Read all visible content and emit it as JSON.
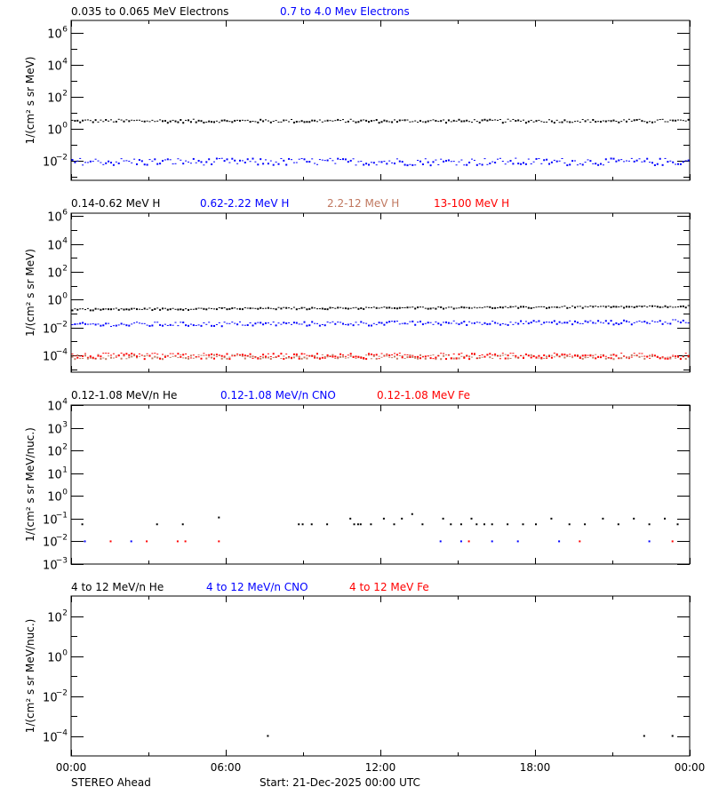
{
  "figure": {
    "footer_left": "STEREO Ahead",
    "footer_center": "Start: 21-Dec-2025 00:00 UTC",
    "x_tick_labels": [
      "00:00",
      "06:00",
      "12:00",
      "18:00",
      "00:00"
    ]
  },
  "chart_data": [
    {
      "type": "scatter",
      "title": "Electrons",
      "ylabel": "1/(cm² s sr MeV)",
      "yscale": "log",
      "ylim_exp": [
        -3.2,
        6.8
      ],
      "ytick_exps": [
        6,
        4,
        2,
        0,
        -2
      ],
      "ytick_labels": [
        "10^6",
        "10^4",
        "10^2",
        "10^0",
        "10^-2"
      ],
      "x_range_hours": [
        0,
        24
      ],
      "xticks": [
        "00:00",
        "06:00",
        "12:00",
        "18:00",
        "00:00"
      ],
      "legend": [
        {
          "label": "0.035 to 0.065 MeV Electrons",
          "color": "#000000"
        },
        {
          "label": "0.7 to 4.0 Mev Electrons",
          "color": "#0000ff"
        }
      ],
      "series": [
        {
          "name": "0.035 to 0.065 MeV Electrons",
          "color": "#000000",
          "level_exp": 0.55,
          "end_level_exp": 0.55,
          "jitter": 0.1
        },
        {
          "name": "0.7 to 4.0 Mev Electrons",
          "color": "#0000ff",
          "level_exp": -2.0,
          "end_level_exp": -2.0,
          "jitter": 0.22
        }
      ]
    },
    {
      "type": "scatter",
      "title": "Protons (H)",
      "ylabel": "1/(cm² s sr MeV)",
      "yscale": "log",
      "ylim_exp": [
        -5.2,
        6.2
      ],
      "ytick_exps": [
        6,
        4,
        2,
        0,
        -2,
        -4
      ],
      "ytick_labels": [
        "10^6",
        "10^4",
        "10^2",
        "10^0",
        "10^-2",
        "10^-4"
      ],
      "x_range_hours": [
        0,
        24
      ],
      "xticks": [
        "00:00",
        "06:00",
        "12:00",
        "18:00",
        "00:00"
      ],
      "legend": [
        {
          "label": "0.14-0.62 MeV H",
          "color": "#000000"
        },
        {
          "label": "0.62-2.22 MeV H",
          "color": "#0000ff"
        },
        {
          "label": "2.2-12 MeV H",
          "color": "#c07860"
        },
        {
          "label": "13-100 MeV H",
          "color": "#ff0000"
        }
      ],
      "series": [
        {
          "name": "0.14-0.62 MeV H",
          "color": "#000000",
          "level_exp": -0.65,
          "end_level_exp": -0.45,
          "jitter": 0.06
        },
        {
          "name": "0.62-2.22 MeV H",
          "color": "#0000ff",
          "level_exp": -1.75,
          "end_level_exp": -1.55,
          "jitter": 0.15
        },
        {
          "name": "2.2-12 MeV H",
          "color": "#c07860",
          "level_exp": -4.05,
          "end_level_exp": -4.05,
          "jitter": 0.15
        },
        {
          "name": "13-100 MeV H",
          "color": "#ff0000",
          "level_exp": -4.0,
          "end_level_exp": -4.0,
          "jitter": 0.2
        }
      ]
    },
    {
      "type": "scatter",
      "title": "Low-energy heavy ions",
      "ylabel": "1/(cm² s sr MeV/nuc.)",
      "yscale": "log",
      "ylim_exp": [
        -3,
        4
      ],
      "ytick_exps": [
        4,
        3,
        2,
        1,
        0,
        -1,
        -2,
        -3
      ],
      "ytick_labels": [
        "10^4",
        "10^3",
        "10^2",
        "10^1",
        "10^0",
        "10^-1",
        "10^-2",
        "10^-3"
      ],
      "x_range_hours": [
        0,
        24
      ],
      "xticks": [
        "00:00",
        "06:00",
        "12:00",
        "18:00",
        "00:00"
      ],
      "legend": [
        {
          "label": "0.12-1.08 MeV/n He",
          "color": "#000000"
        },
        {
          "label": "0.12-1.08 MeV/n CNO",
          "color": "#0000ff"
        },
        {
          "label": "0.12-1.08 MeV Fe",
          "color": "#ff0000"
        }
      ],
      "points": {
        "He_hours": [
          0.4,
          3.3,
          4.3,
          5.7,
          8.8,
          8.95,
          9.3,
          9.9,
          10.8,
          10.95,
          11.1,
          11.2,
          11.6,
          12.1,
          12.5,
          12.8,
          13.2,
          13.6,
          14.4,
          14.7,
          15.1,
          15.5,
          15.7,
          16.0,
          16.3,
          16.9,
          17.5,
          18.0,
          18.6,
          19.3,
          19.9,
          20.6,
          21.2,
          21.8,
          22.4,
          23.0,
          23.5
        ],
        "He_exps": [
          -1.25,
          -1.25,
          -1.25,
          -0.95,
          -1.25,
          -1.25,
          -1.25,
          -1.25,
          -1.0,
          -1.25,
          -1.25,
          -1.25,
          -1.25,
          -1.0,
          -1.25,
          -1.0,
          -0.8,
          -1.25,
          -1.0,
          -1.25,
          -1.25,
          -1.0,
          -1.25,
          -1.25,
          -1.25,
          -1.25,
          -1.25,
          -1.25,
          -1.0,
          -1.25,
          -1.25,
          -1.0,
          -1.25,
          -1.0,
          -1.25,
          -1.0,
          -1.25
        ],
        "CNO_hours": [
          0.5,
          2.3,
          14.3,
          15.1,
          16.3,
          17.3,
          18.9,
          22.4
        ],
        "CNO_exps": [
          -2,
          -2,
          -2,
          -2,
          -2,
          -2,
          -2,
          -2
        ],
        "Fe_hours": [
          1.5,
          2.9,
          4.1,
          4.4,
          5.7,
          15.4,
          19.7,
          23.3
        ],
        "Fe_exps": [
          -2,
          -2,
          -2,
          -2,
          -2,
          -2,
          -2,
          -2
        ]
      }
    },
    {
      "type": "scatter",
      "title": "High-energy heavy ions",
      "ylabel": "1/(cm² s sr MeV/nuc.)",
      "yscale": "log",
      "ylim_exp": [
        -5,
        3
      ],
      "ytick_exps": [
        2,
        0,
        -2,
        -4
      ],
      "ytick_labels": [
        "10^2",
        "10^0",
        "10^-2",
        "10^-4"
      ],
      "x_range_hours": [
        0,
        24
      ],
      "xticks": [
        "00:00",
        "06:00",
        "12:00",
        "18:00",
        "00:00"
      ],
      "legend": [
        {
          "label": "4 to 12 MeV/n He",
          "color": "#000000"
        },
        {
          "label": "4 to 12 MeV/n CNO",
          "color": "#0000ff"
        },
        {
          "label": "4 to 12 MeV Fe",
          "color": "#ff0000"
        }
      ],
      "points": {
        "He_hours": [
          7.6,
          22.2,
          23.3
        ],
        "He_exps": [
          -4,
          -4,
          -4
        ]
      }
    }
  ],
  "panels": [
    {
      "legend": [
        "0.035 to 0.065 MeV Electrons",
        "0.7 to 4.0 Mev Electrons"
      ]
    },
    {
      "legend": [
        "0.14-0.62 MeV H",
        "0.62-2.22 MeV H",
        "2.2-12 MeV H",
        "13-100 MeV H"
      ]
    },
    {
      "legend": [
        "0.12-1.08 MeV/n He",
        "0.12-1.08 MeV/n CNO",
        "0.12-1.08 MeV Fe"
      ]
    },
    {
      "legend": [
        "4 to 12 MeV/n He",
        "4 to 12 MeV/n CNO",
        "4 to 12 MeV Fe"
      ]
    }
  ]
}
